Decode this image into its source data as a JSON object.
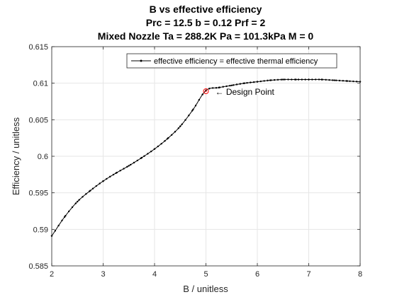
{
  "chart_data": {
    "type": "line",
    "title_lines": [
      "B vs effective efficiency",
      "Prc = 12.5 b = 0.12 Prf = 2",
      "Mixed Nozzle Ta = 288.2K Pa = 101.3kPa M = 0"
    ],
    "xlabel": "B / unitless",
    "ylabel": "Efficiency / unitless",
    "xlim": [
      2,
      8
    ],
    "ylim": [
      0.585,
      0.615
    ],
    "xticks": [
      2,
      3,
      4,
      5,
      6,
      7,
      8
    ],
    "xtick_labels": [
      "2",
      "3",
      "4",
      "5",
      "6",
      "7",
      "8"
    ],
    "yticks": [
      0.585,
      0.59,
      0.595,
      0.6,
      0.605,
      0.61,
      0.615
    ],
    "ytick_labels": [
      "0.585",
      "0.59",
      "0.595",
      "0.6",
      "0.605",
      "0.61",
      "0.615"
    ],
    "grid": true,
    "legend_position": "top-right",
    "series": [
      {
        "name": "effective efficiency = effective thermal efficiency",
        "color": "#000000",
        "marker": "dot",
        "x": [
          2.0,
          2.25,
          2.5,
          2.75,
          3.0,
          3.25,
          3.5,
          3.75,
          4.0,
          4.25,
          4.5,
          4.75,
          5.0,
          5.25,
          5.5,
          5.75,
          6.0,
          6.25,
          6.5,
          6.75,
          7.0,
          7.25,
          7.5,
          7.75,
          8.0
        ],
        "y": [
          0.5891,
          0.5917,
          0.5938,
          0.5953,
          0.5966,
          0.5977,
          0.5987,
          0.5998,
          0.601,
          0.6024,
          0.6041,
          0.6064,
          0.609,
          0.6094,
          0.6097,
          0.61,
          0.6102,
          0.6104,
          0.6105,
          0.6105,
          0.6105,
          0.6105,
          0.6104,
          0.6103,
          0.6102
        ]
      }
    ],
    "design_point": {
      "x": 5.0,
      "y": 0.6089,
      "marker_color": "#ff0000",
      "label": "← Design Point"
    }
  }
}
